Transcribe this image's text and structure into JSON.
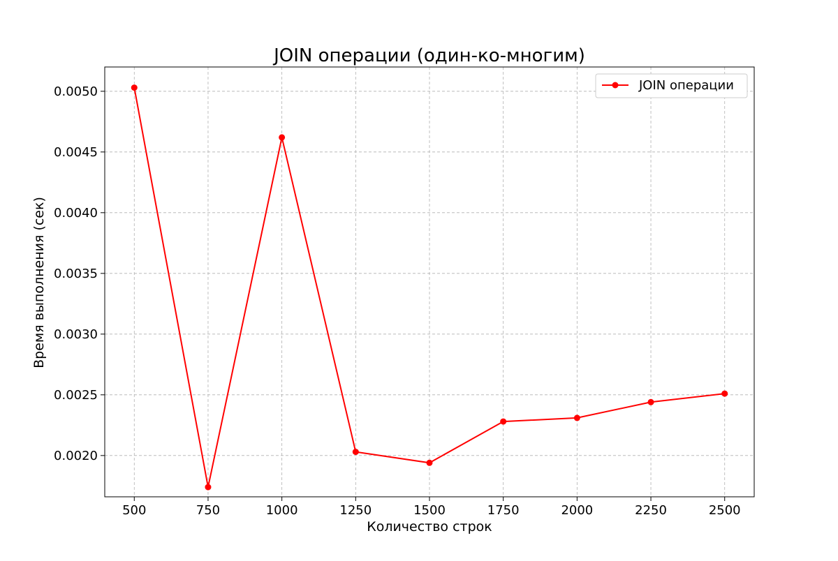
{
  "chart_data": {
    "type": "line",
    "title": "JOIN операции (один-ко-многим)",
    "xlabel": "Количество строк",
    "ylabel": "Время выполнения (сек)",
    "x": [
      500,
      750,
      1000,
      1250,
      1500,
      1750,
      2000,
      2250,
      2500
    ],
    "x_ticks": [
      "500",
      "750",
      "1000",
      "1250",
      "1500",
      "1750",
      "2000",
      "2250",
      "2500"
    ],
    "y_ticks": [
      "0.0020",
      "0.0025",
      "0.0030",
      "0.0035",
      "0.0040",
      "0.0045",
      "0.0050"
    ],
    "xlim": [
      400,
      2600
    ],
    "ylim": [
      0.00166,
      0.0052
    ],
    "grid": true,
    "legend_position": "upper right",
    "series": [
      {
        "name": "JOIN операции",
        "color": "#ff0000",
        "marker": "circle",
        "values": [
          0.00503,
          0.00174,
          0.00462,
          0.00203,
          0.00194,
          0.00228,
          0.00231,
          0.00244,
          0.00251
        ]
      }
    ]
  }
}
